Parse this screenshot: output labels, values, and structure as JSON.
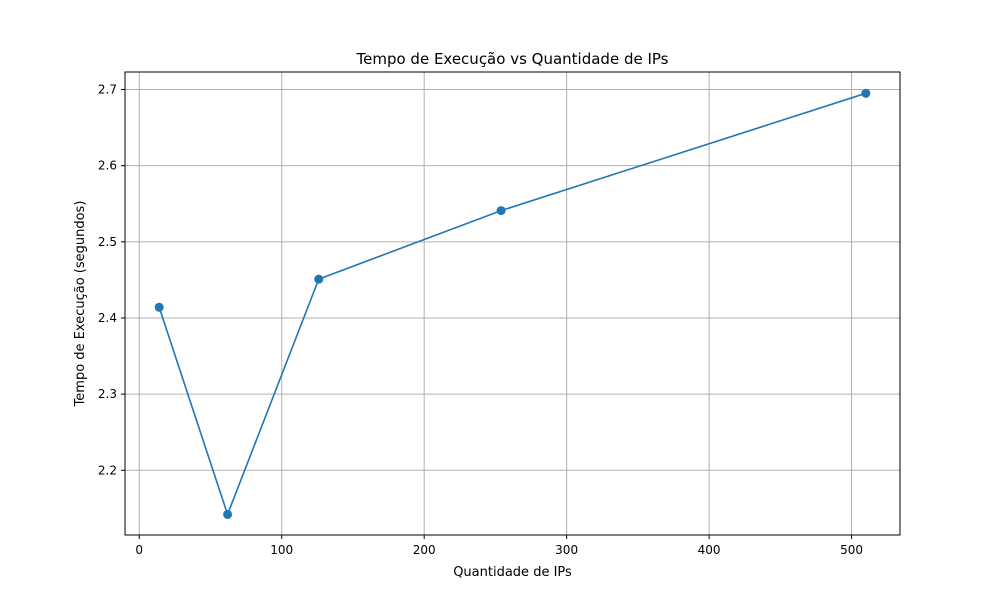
{
  "chart_data": {
    "type": "line",
    "title": "Tempo de Execução vs Quantidade de IPs",
    "xlabel": "Quantidade de IPs",
    "ylabel": "Tempo de Execução (segundos)",
    "xlim": [
      -10,
      534
    ],
    "ylim": [
      2.115,
      2.723
    ],
    "xticks": [
      0,
      100,
      200,
      300,
      400,
      500
    ],
    "yticks": [
      2.2,
      2.3,
      2.4,
      2.5,
      2.6,
      2.7
    ],
    "grid": true,
    "series": [
      {
        "x": [
          14,
          62,
          126,
          254,
          510
        ],
        "y": [
          2.414,
          2.142,
          2.451,
          2.541,
          2.695
        ],
        "color": "#1f77b4",
        "marker": "circle"
      }
    ]
  }
}
